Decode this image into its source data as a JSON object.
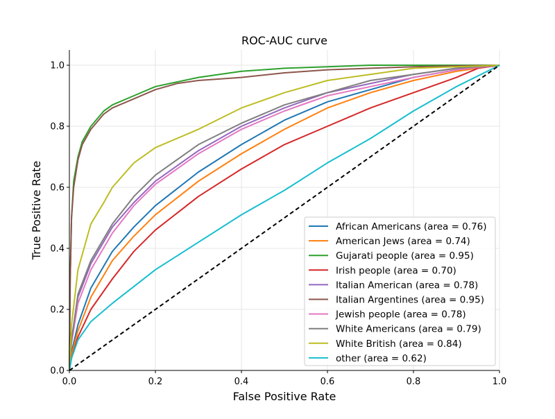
{
  "chart_data": {
    "type": "line",
    "title": "ROC-AUC curve",
    "xlabel": "False Positive Rate",
    "ylabel": "True Positive Rate",
    "xlim": [
      0,
      1
    ],
    "ylim": [
      0,
      1.05
    ],
    "grid": true,
    "legend_position": "lower-right",
    "xticks": [
      {
        "value": 0,
        "label": "0.0"
      },
      {
        "value": 0.2,
        "label": "0.2"
      },
      {
        "value": 0.4,
        "label": "0.4"
      },
      {
        "value": 0.6,
        "label": "0.6"
      },
      {
        "value": 0.8,
        "label": "0.8"
      },
      {
        "value": 1,
        "label": "1.0"
      }
    ],
    "yticks": [
      {
        "value": 0,
        "label": "0.0"
      },
      {
        "value": 0.2,
        "label": "0.2"
      },
      {
        "value": 0.4,
        "label": "0.4"
      },
      {
        "value": 0.6,
        "label": "0.6"
      },
      {
        "value": 0.8,
        "label": "0.8"
      },
      {
        "value": 1,
        "label": "1.0"
      }
    ],
    "baseline": {
      "x": [
        0,
        1
      ],
      "y": [
        0,
        1
      ],
      "color": "#000000",
      "style": "dashed"
    },
    "series": [
      {
        "name": "African Americans",
        "legend": "African Americans (area = 0.76)",
        "color": "#1f77b4",
        "x": [
          0,
          0.005,
          0.02,
          0.05,
          0.1,
          0.15,
          0.2,
          0.3,
          0.4,
          0.5,
          0.6,
          0.7,
          0.8,
          0.9,
          1.0
        ],
        "y": [
          0,
          0.06,
          0.15,
          0.27,
          0.39,
          0.47,
          0.54,
          0.65,
          0.74,
          0.82,
          0.88,
          0.92,
          0.96,
          0.985,
          1.0
        ]
      },
      {
        "name": "American Jews",
        "legend": "American Jews (area = 0.74)",
        "color": "#ff7f0e",
        "x": [
          0,
          0.005,
          0.02,
          0.05,
          0.1,
          0.15,
          0.2,
          0.3,
          0.4,
          0.5,
          0.6,
          0.7,
          0.8,
          0.9,
          1.0
        ],
        "y": [
          0,
          0.05,
          0.13,
          0.24,
          0.36,
          0.44,
          0.51,
          0.62,
          0.71,
          0.79,
          0.86,
          0.91,
          0.95,
          0.98,
          1.0
        ]
      },
      {
        "name": "Gujarati people",
        "legend": "Gujarati people (area = 0.95)",
        "color": "#2ca02c",
        "x": [
          0,
          0.002,
          0.005,
          0.01,
          0.02,
          0.03,
          0.05,
          0.08,
          0.1,
          0.15,
          0.2,
          0.3,
          0.4,
          0.5,
          0.6,
          0.7,
          0.8,
          0.9,
          1.0
        ],
        "y": [
          0,
          0.3,
          0.5,
          0.62,
          0.7,
          0.75,
          0.8,
          0.85,
          0.87,
          0.9,
          0.93,
          0.96,
          0.98,
          0.99,
          0.995,
          1.0,
          1.0,
          1.0,
          1.0
        ]
      },
      {
        "name": "Irish people",
        "legend": "Irish people (area = 0.70)",
        "color": "#d62728",
        "x": [
          0,
          0.005,
          0.02,
          0.05,
          0.1,
          0.15,
          0.2,
          0.3,
          0.4,
          0.5,
          0.6,
          0.7,
          0.8,
          0.9,
          0.95,
          1.0
        ],
        "y": [
          0,
          0.04,
          0.11,
          0.2,
          0.3,
          0.39,
          0.46,
          0.57,
          0.66,
          0.74,
          0.8,
          0.86,
          0.91,
          0.96,
          0.99,
          1.0
        ]
      },
      {
        "name": "Italian American",
        "legend": "Italian American (area = 0.78)",
        "color": "#9467bd",
        "x": [
          0,
          0.005,
          0.02,
          0.05,
          0.1,
          0.15,
          0.2,
          0.3,
          0.4,
          0.5,
          0.6,
          0.7,
          0.8,
          0.9,
          1.0
        ],
        "y": [
          0,
          0.1,
          0.24,
          0.35,
          0.47,
          0.55,
          0.62,
          0.72,
          0.8,
          0.86,
          0.91,
          0.94,
          0.97,
          0.99,
          1.0
        ]
      },
      {
        "name": "Italian Argentines",
        "legend": "Italian Argentines (area = 0.95)",
        "color": "#8c564b",
        "x": [
          0,
          0.002,
          0.005,
          0.01,
          0.02,
          0.03,
          0.05,
          0.08,
          0.1,
          0.15,
          0.2,
          0.25,
          0.3,
          0.4,
          0.5,
          0.6,
          0.7,
          0.8,
          0.9,
          1.0
        ],
        "y": [
          0,
          0.3,
          0.5,
          0.6,
          0.69,
          0.74,
          0.79,
          0.84,
          0.86,
          0.89,
          0.92,
          0.94,
          0.95,
          0.96,
          0.975,
          0.985,
          0.99,
          0.995,
          0.998,
          1.0
        ]
      },
      {
        "name": "Jewish people",
        "legend": "Jewish people (area = 0.78)",
        "color": "#e377c2",
        "x": [
          0,
          0.005,
          0.02,
          0.05,
          0.1,
          0.15,
          0.2,
          0.3,
          0.4,
          0.5,
          0.6,
          0.7,
          0.8,
          0.9,
          1.0
        ],
        "y": [
          0,
          0.09,
          0.22,
          0.33,
          0.45,
          0.54,
          0.61,
          0.71,
          0.79,
          0.85,
          0.9,
          0.93,
          0.96,
          0.985,
          1.0
        ]
      },
      {
        "name": "White Americans",
        "legend": "White Americans (area = 0.79)",
        "color": "#7f7f7f",
        "x": [
          0,
          0.005,
          0.02,
          0.05,
          0.1,
          0.15,
          0.2,
          0.3,
          0.4,
          0.5,
          0.6,
          0.7,
          0.8,
          0.9,
          1.0
        ],
        "y": [
          0,
          0.1,
          0.25,
          0.36,
          0.48,
          0.57,
          0.64,
          0.74,
          0.81,
          0.87,
          0.91,
          0.95,
          0.97,
          0.99,
          1.0
        ]
      },
      {
        "name": "White British",
        "legend": "White British (area = 0.84)",
        "color": "#bcbd22",
        "x": [
          0,
          0.005,
          0.02,
          0.05,
          0.08,
          0.1,
          0.15,
          0.2,
          0.3,
          0.4,
          0.5,
          0.6,
          0.7,
          0.8,
          0.9,
          1.0
        ],
        "y": [
          0,
          0.15,
          0.33,
          0.48,
          0.55,
          0.6,
          0.68,
          0.73,
          0.79,
          0.86,
          0.91,
          0.95,
          0.97,
          0.99,
          0.995,
          1.0
        ]
      },
      {
        "name": "other",
        "legend": "other (area = 0.62)",
        "color": "#17becf",
        "x": [
          0,
          0.005,
          0.02,
          0.05,
          0.1,
          0.2,
          0.3,
          0.4,
          0.5,
          0.6,
          0.7,
          0.8,
          0.9,
          1.0
        ],
        "y": [
          0,
          0.04,
          0.1,
          0.16,
          0.22,
          0.33,
          0.42,
          0.51,
          0.59,
          0.68,
          0.76,
          0.85,
          0.93,
          1.0
        ]
      }
    ]
  }
}
